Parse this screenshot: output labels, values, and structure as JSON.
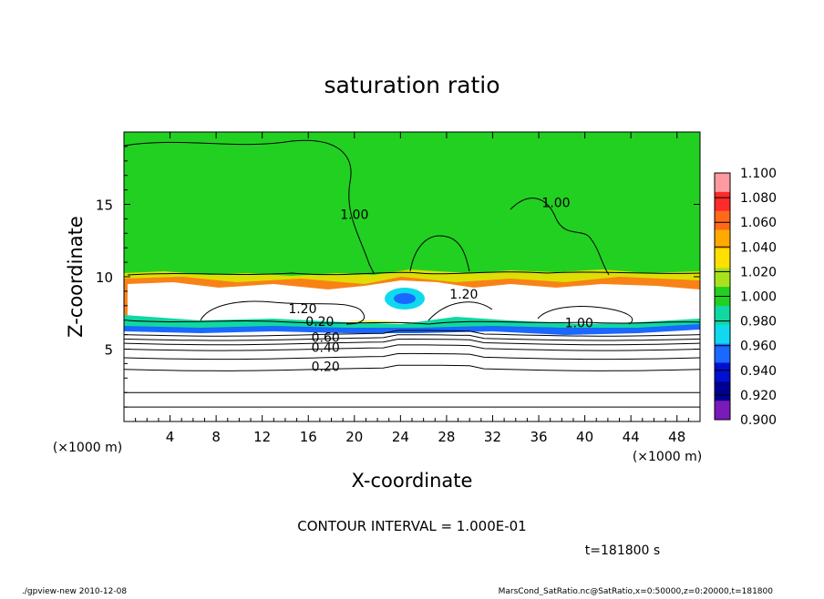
{
  "chart_data": {
    "type": "heatmap",
    "title": "saturation ratio",
    "xlabel": "X-coordinate",
    "ylabel": "Z-coordinate",
    "x_unit": "(×1000 m)",
    "y_unit": "(×1000 m)",
    "xlim": [
      0,
      50
    ],
    "ylim": [
      0,
      20
    ],
    "x_ticks": [
      4,
      8,
      12,
      16,
      20,
      24,
      28,
      32,
      36,
      40,
      44,
      48
    ],
    "y_ticks": [
      5,
      10,
      15
    ],
    "colorbar": {
      "levels": [
        "1.100",
        "1.080",
        "1.060",
        "1.040",
        "1.020",
        "1.000",
        "0.980",
        "0.960",
        "0.940",
        "0.920",
        "0.900"
      ],
      "colors": [
        "#ff9aa0",
        "#ff2a2a",
        "#ff6a1a",
        "#ffaa00",
        "#ffe000",
        "#a8e21c",
        "#22d022",
        "#10d8a0",
        "#10d8ee",
        "#1a68ff",
        "#0010d0",
        "#000090",
        "#7a1ab8"
      ]
    },
    "background_value_color": "#22d022",
    "contour_labels": [
      {
        "text": "1.00",
        "x": 20.0,
        "z": 14.0
      },
      {
        "text": "1.00",
        "x": 37.5,
        "z": 14.8
      },
      {
        "text": "1.00",
        "x": 39.5,
        "z": 6.5
      },
      {
        "text": "1.20",
        "x": 29.5,
        "z": 8.5
      },
      {
        "text": "1.20",
        "x": 15.5,
        "z": 7.5
      },
      {
        "text": "0.20",
        "x": 17.0,
        "z": 6.6
      },
      {
        "text": "0.60",
        "x": 17.5,
        "z": 5.5
      },
      {
        "text": "0.40",
        "x": 17.5,
        "z": 4.8
      },
      {
        "text": "0.20",
        "x": 17.5,
        "z": 3.5
      }
    ],
    "contour_interval_text": "CONTOUR INTERVAL = 1.000E-01"
  },
  "time_text": "t=181800 s",
  "footer_left": "./gpview-new   2010-12-08",
  "footer_right": "MarsCond_SatRatio.nc@SatRatio,x=0:50000,z=0:20000,t=181800"
}
